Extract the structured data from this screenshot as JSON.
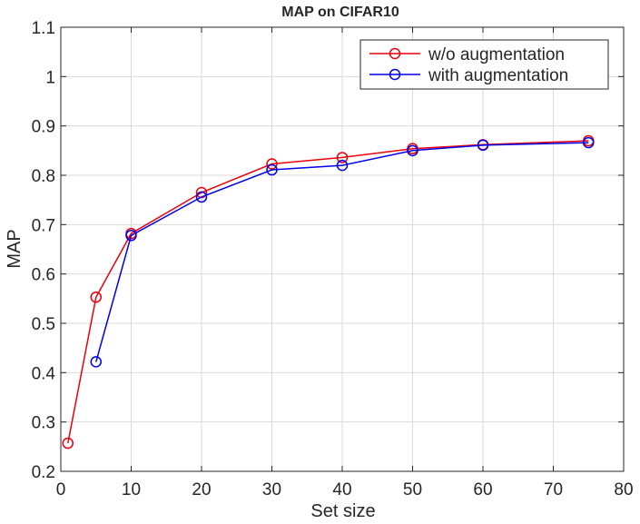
{
  "chart_data": {
    "type": "line",
    "title": "MAP on CIFAR10",
    "xlabel": "Set size",
    "ylabel": "MAP",
    "xlim": [
      0,
      80
    ],
    "ylim": [
      0.2,
      1.1
    ],
    "xticks": [
      0,
      10,
      20,
      30,
      40,
      50,
      60,
      70,
      80
    ],
    "yticks": [
      0.2,
      0.3,
      0.4,
      0.5,
      0.6,
      0.7,
      0.8,
      0.9,
      1,
      1.1
    ],
    "xtick_labels": [
      "0",
      "10",
      "20",
      "30",
      "40",
      "50",
      "60",
      "70",
      "80"
    ],
    "ytick_labels": [
      "0.2",
      "0.3",
      "0.4",
      "0.5",
      "0.6",
      "0.7",
      "0.8",
      "0.9",
      "1",
      "1.1"
    ],
    "grid": true,
    "legend_position": "top-right",
    "marker": "circle",
    "series": [
      {
        "name": "w/o augmentation",
        "color": "#e8000b",
        "x": [
          1,
          5,
          10,
          20,
          30,
          40,
          50,
          60,
          75
        ],
        "y": [
          0.257,
          0.553,
          0.682,
          0.765,
          0.823,
          0.836,
          0.854,
          0.862,
          0.87
        ]
      },
      {
        "name": "with augmentation",
        "color": "#0000e8",
        "x": [
          5,
          10,
          20,
          30,
          40,
          50,
          60,
          75
        ],
        "y": [
          0.422,
          0.678,
          0.756,
          0.811,
          0.82,
          0.85,
          0.861,
          0.866
        ]
      }
    ]
  }
}
